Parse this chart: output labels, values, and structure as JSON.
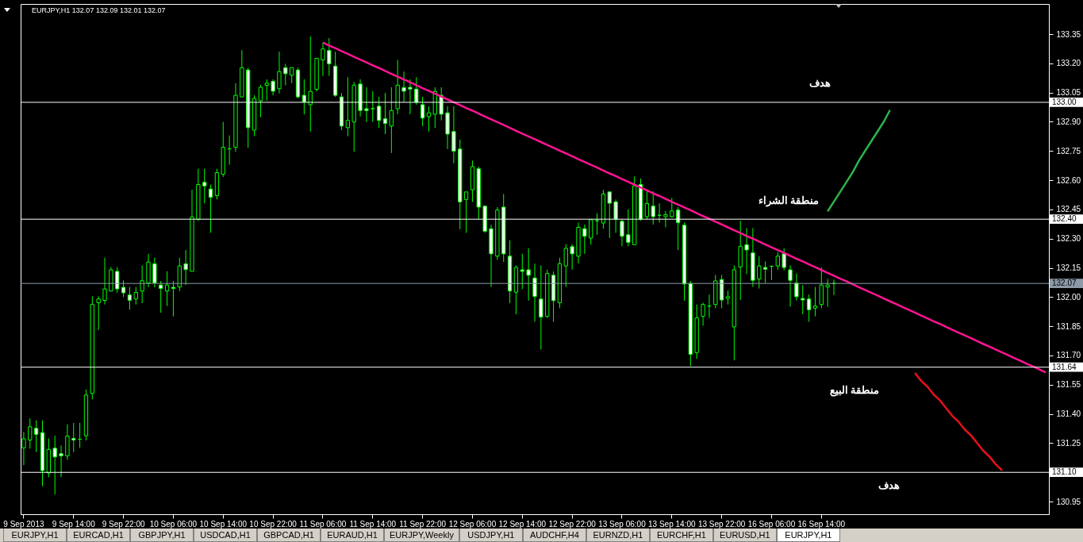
{
  "chart_data": {
    "type": "candlestick",
    "title": "EURJPY,H1  132.07 132.09 132.01 132.07",
    "categories": [
      "9 Sep 2013",
      null,
      null,
      null,
      null,
      null,
      null,
      null,
      "9 Sep 14:00",
      null,
      null,
      null,
      null,
      null,
      null,
      null,
      "9 Sep 22:00",
      null,
      null,
      null,
      null,
      null,
      null,
      null,
      "10 Sep 06:00",
      null,
      null,
      null,
      null,
      null,
      null,
      null,
      "10 Sep 14:00",
      null,
      null,
      null,
      null,
      null,
      null,
      null,
      "10 Sep 22:00",
      null,
      null,
      null,
      null,
      null,
      null,
      null,
      "11 Sep 06:00",
      null,
      null,
      null,
      null,
      null,
      null,
      null,
      "11 Sep 14:00",
      null,
      null,
      null,
      null,
      null,
      null,
      null,
      "11 Sep 22:00",
      null,
      null,
      null,
      null,
      null,
      null,
      null,
      "12 Sep 06:00",
      null,
      null,
      null,
      null,
      null,
      null,
      null,
      "12 Sep 14:00",
      null,
      null,
      null,
      null,
      null,
      null,
      null,
      "12 Sep 22:00",
      null,
      null,
      null,
      null,
      null,
      null,
      null,
      "13 Sep 06:00",
      null,
      null,
      null,
      null,
      null,
      null,
      null,
      "13 Sep 14:00",
      null,
      null,
      null,
      null,
      null,
      null,
      null,
      "13 Sep 22:00",
      null,
      null,
      null,
      null,
      null,
      null,
      null,
      "16 Sep 06:00",
      null,
      null,
      null,
      null,
      null,
      null,
      null,
      "16 Sep 14:00",
      null,
      null,
      null,
      null,
      null,
      null,
      null,
      null,
      null,
      null,
      null,
      null,
      null,
      null,
      null,
      null,
      null,
      null,
      null,
      null,
      null,
      null,
      null,
      null,
      null,
      null,
      null,
      null,
      null,
      null,
      null,
      null,
      null,
      null,
      null,
      null
    ],
    "ohlc": [
      [
        131.226,
        131.308,
        131.137,
        131.272
      ],
      [
        131.266,
        131.377,
        131.222,
        131.334
      ],
      [
        131.326,
        131.367,
        131.204,
        131.295
      ],
      [
        131.304,
        131.367,
        131.029,
        131.109
      ],
      [
        131.097,
        131.274,
        131.075,
        131.218
      ],
      [
        131.224,
        131.288,
        130.987,
        131.179
      ],
      [
        131.196,
        131.238,
        131.075,
        131.185
      ],
      [
        131.185,
        131.346,
        131.164,
        131.286
      ],
      [
        131.274,
        131.354,
        131.204,
        131.266
      ],
      [
        131.27,
        131.354,
        131.226,
        131.27
      ],
      [
        131.288,
        131.525,
        131.264,
        131.497
      ],
      [
        131.506,
        132.004,
        131.475,
        131.962
      ],
      [
        131.971,
        132.004,
        131.831,
        131.99
      ],
      [
        131.983,
        132.202,
        131.962,
        132.042
      ],
      [
        132.031,
        132.154,
        132.031,
        132.14
      ],
      [
        132.132,
        132.154,
        132.022,
        132.042
      ],
      [
        132.05,
        132.086,
        132.0,
        132.022
      ],
      [
        132.011,
        132.052,
        131.935,
        131.983
      ],
      [
        131.99,
        132.052,
        131.962,
        132.024
      ],
      [
        132.031,
        132.163,
        131.969,
        132.084
      ],
      [
        132.073,
        132.222,
        132.05,
        132.18
      ],
      [
        132.171,
        132.202,
        132.05,
        132.073
      ],
      [
        132.062,
        132.083,
        131.92,
        132.044
      ],
      [
        132.031,
        132.132,
        131.954,
        132.062
      ],
      [
        132.05,
        132.083,
        131.901,
        132.044
      ],
      [
        132.052,
        132.202,
        132.031,
        132.16
      ],
      [
        132.171,
        132.242,
        132.062,
        132.141
      ],
      [
        132.132,
        132.551,
        132.132,
        132.411
      ],
      [
        132.4,
        132.659,
        132.392,
        132.578
      ],
      [
        132.589,
        132.659,
        132.481,
        132.571
      ],
      [
        132.555,
        132.578,
        132.33,
        132.512
      ],
      [
        132.521,
        132.659,
        132.501,
        132.639
      ],
      [
        132.631,
        132.899,
        132.617,
        132.769
      ],
      [
        132.761,
        132.83,
        132.679,
        132.761
      ],
      [
        132.769,
        133.098,
        132.747,
        133.036
      ],
      [
        133.028,
        133.268,
        133.028,
        133.178
      ],
      [
        133.166,
        133.178,
        132.767,
        132.87
      ],
      [
        132.857,
        133.036,
        132.826,
        133.02
      ],
      [
        133.008,
        133.09,
        132.924,
        133.077
      ],
      [
        133.087,
        133.118,
        133.008,
        133.098
      ],
      [
        133.108,
        133.118,
        133.036,
        133.057
      ],
      [
        133.07,
        133.26,
        133.046,
        133.158
      ],
      [
        133.178,
        133.198,
        133.087,
        133.147
      ],
      [
        133.139,
        133.178,
        133.098,
        133.178
      ],
      [
        133.166,
        133.178,
        133.02,
        133.028
      ],
      [
        133.036,
        133.118,
        132.938,
        133.002
      ],
      [
        132.988,
        133.338,
        132.85,
        133.056
      ],
      [
        133.067,
        133.226,
        133.056,
        133.226
      ],
      [
        133.218,
        133.307,
        133.136,
        133.274
      ],
      [
        133.266,
        133.33,
        133.136,
        133.198
      ],
      [
        133.186,
        133.26,
        133.028,
        133.036
      ],
      [
        133.028,
        133.048,
        132.857,
        132.878
      ],
      [
        132.87,
        133.129,
        132.826,
        132.907
      ],
      [
        132.899,
        133.105,
        132.746,
        133.088
      ],
      [
        133.094,
        133.118,
        132.927,
        132.958
      ],
      [
        132.967,
        133.077,
        132.899,
        132.958
      ],
      [
        132.967,
        133.057,
        132.899,
        132.967
      ],
      [
        132.98,
        133.028,
        132.868,
        132.907
      ],
      [
        132.916,
        133.048,
        132.837,
        132.891
      ],
      [
        132.878,
        133.077,
        132.74,
        132.958
      ],
      [
        132.967,
        133.218,
        132.939,
        133.088
      ],
      [
        133.076,
        133.158,
        133.0,
        133.057
      ],
      [
        133.077,
        133.118,
        132.939,
        133.068
      ],
      [
        133.068,
        133.129,
        132.988,
        133.0
      ],
      [
        132.988,
        133.028,
        132.878,
        132.919
      ],
      [
        132.927,
        132.98,
        132.85,
        132.946
      ],
      [
        132.939,
        133.077,
        132.868,
        133.056
      ],
      [
        133.036,
        133.077,
        132.907,
        132.939
      ],
      [
        132.946,
        132.98,
        132.76,
        132.837
      ],
      [
        132.85,
        132.98,
        132.687,
        132.749
      ],
      [
        132.76,
        132.809,
        132.349,
        132.489
      ],
      [
        132.501,
        132.54,
        132.33,
        132.54
      ],
      [
        132.551,
        132.701,
        132.489,
        132.67
      ],
      [
        132.659,
        132.67,
        132.4,
        132.462
      ],
      [
        132.467,
        132.467,
        132.33,
        132.338
      ],
      [
        132.351,
        132.372,
        132.052,
        132.222
      ],
      [
        132.21,
        132.462,
        132.191,
        132.447
      ],
      [
        132.462,
        132.529,
        132.18,
        132.222
      ],
      [
        132.21,
        132.292,
        131.969,
        132.031
      ],
      [
        132.025,
        132.163,
        131.912,
        132.152
      ],
      [
        132.14,
        132.222,
        132.041,
        132.132
      ],
      [
        132.14,
        132.251,
        131.982,
        132.112
      ],
      [
        132.098,
        132.172,
        131.873,
        132.003
      ],
      [
        131.99,
        132.163,
        131.731,
        131.897
      ],
      [
        131.901,
        132.141,
        131.893,
        132.121
      ],
      [
        132.112,
        132.132,
        131.873,
        131.982
      ],
      [
        131.971,
        132.202,
        131.943,
        132.172
      ],
      [
        132.16,
        132.272,
        132.052,
        132.25
      ],
      [
        132.259,
        132.272,
        132.141,
        132.222
      ],
      [
        132.21,
        132.382,
        132.172,
        132.358
      ],
      [
        132.351,
        132.372,
        132.222,
        132.312
      ],
      [
        132.303,
        132.397,
        132.269,
        132.397
      ],
      [
        132.392,
        132.431,
        132.32,
        132.392
      ],
      [
        132.38,
        132.551,
        132.351,
        132.529
      ],
      [
        132.54,
        132.54,
        132.303,
        132.482
      ],
      [
        132.489,
        132.501,
        132.33,
        132.4
      ],
      [
        132.389,
        132.4,
        132.261,
        132.312
      ],
      [
        132.32,
        132.45,
        132.261,
        132.281
      ],
      [
        132.269,
        132.62,
        132.269,
        132.571
      ],
      [
        132.578,
        132.609,
        132.392,
        132.4
      ],
      [
        132.413,
        132.547,
        132.4,
        132.481
      ],
      [
        132.467,
        132.543,
        132.372,
        132.413
      ],
      [
        132.42,
        132.481,
        132.382,
        132.42
      ],
      [
        132.413,
        132.442,
        132.358,
        132.423
      ],
      [
        132.413,
        132.509,
        132.408,
        132.442
      ],
      [
        132.447,
        132.462,
        132.242,
        132.382
      ],
      [
        132.369,
        132.382,
        131.982,
        132.067
      ],
      [
        132.07,
        132.083,
        131.646,
        131.706
      ],
      [
        131.715,
        131.962,
        131.683,
        131.893
      ],
      [
        131.901,
        131.971,
        131.853,
        131.962
      ],
      [
        131.954,
        132.013,
        131.893,
        131.954
      ],
      [
        131.962,
        132.114,
        131.943,
        132.083
      ],
      [
        132.09,
        132.114,
        131.943,
        131.985
      ],
      [
        131.993,
        132.033,
        131.962,
        132.002
      ],
      [
        131.847,
        132.163,
        131.675,
        132.14
      ],
      [
        132.155,
        132.392,
        131.985,
        132.261
      ],
      [
        132.269,
        132.354,
        132.118,
        132.242
      ],
      [
        132.227,
        132.354,
        132.052,
        132.086
      ],
      [
        132.093,
        132.21,
        132.044,
        132.16
      ],
      [
        132.152,
        132.183,
        132.072,
        132.143
      ],
      [
        132.158,
        132.163,
        132.087,
        132.158
      ],
      [
        132.16,
        132.23,
        132.14,
        132.21
      ],
      [
        132.222,
        132.251,
        132.137,
        132.152
      ],
      [
        132.14,
        132.163,
        131.951,
        132.086
      ],
      [
        132.072,
        132.121,
        131.982,
        132.002
      ],
      [
        131.993,
        132.062,
        131.912,
        131.985
      ],
      [
        131.99,
        132.013,
        131.873,
        131.935
      ],
      [
        131.943,
        132.052,
        131.901,
        131.954
      ],
      [
        131.962,
        132.152,
        131.943,
        132.062
      ],
      [
        132.052,
        132.093,
        131.951,
        132.062
      ],
      [
        132.07,
        132.09,
        132.01,
        132.07
      ],
      null,
      null,
      null,
      null,
      null,
      null,
      null,
      null,
      null,
      null,
      null,
      null,
      null,
      null,
      null,
      null,
      null,
      null,
      null,
      null,
      null,
      null,
      null,
      null,
      null,
      null,
      null,
      null,
      null,
      null,
      null,
      null,
      null,
      null
    ],
    "series": [
      {
        "type": "line",
        "color": "#ff1493",
        "values": [
          null,
          null,
          null,
          null,
          null,
          null,
          null,
          null,
          null,
          null,
          null,
          null,
          null,
          null,
          null,
          null,
          null,
          null,
          null,
          null,
          null,
          null,
          null,
          null,
          null,
          null,
          null,
          null,
          null,
          null,
          null,
          null,
          null,
          null,
          null,
          null,
          null,
          null,
          null,
          null,
          null,
          null,
          null,
          null,
          null,
          null,
          null,
          null,
          133.307,
          133.292,
          133.278,
          133.263,
          133.249,
          133.234,
          133.219,
          133.205,
          133.19,
          133.176,
          133.161,
          133.146,
          133.132,
          133.117,
          133.103,
          133.088,
          133.073,
          133.059,
          133.044,
          133.03,
          133.015,
          133.0,
          132.986,
          132.971,
          132.957,
          132.942,
          132.927,
          132.913,
          132.898,
          132.884,
          132.869,
          132.854,
          132.839,
          132.825,
          132.811,
          132.796,
          132.781,
          132.767,
          132.752,
          132.738,
          132.723,
          132.708,
          132.694,
          132.679,
          132.665,
          132.65,
          132.635,
          132.621,
          132.606,
          132.592,
          132.577,
          132.562,
          132.548,
          132.533,
          132.519,
          132.504,
          132.489,
          132.475,
          132.46,
          132.446,
          132.431,
          132.416,
          132.402,
          132.387,
          132.373,
          132.358,
          132.343,
          132.329,
          132.314,
          132.3,
          132.285,
          132.27,
          132.256,
          132.241,
          132.227,
          132.212,
          132.197,
          132.183,
          132.168,
          132.154,
          132.139,
          132.124,
          132.11,
          132.095,
          132.081,
          132.066,
          132.051,
          132.037,
          132.022,
          132.008,
          131.993,
          131.978,
          131.964,
          131.949,
          131.935,
          131.92,
          131.905,
          131.891,
          131.876,
          131.862,
          131.847,
          131.832,
          131.818,
          131.803,
          131.789,
          131.774,
          131.759,
          131.745,
          131.73,
          131.716,
          131.701,
          131.686,
          131.672,
          131.657,
          131.643,
          131.628,
          131.613
        ]
      },
      {
        "type": "line",
        "color": "#2db34a",
        "values": [
          null,
          null,
          null,
          null,
          null,
          null,
          null,
          null,
          null,
          null,
          null,
          null,
          null,
          null,
          null,
          null,
          null,
          null,
          null,
          null,
          null,
          null,
          null,
          null,
          null,
          null,
          null,
          null,
          null,
          null,
          null,
          null,
          null,
          null,
          null,
          null,
          null,
          null,
          null,
          null,
          null,
          null,
          null,
          null,
          null,
          null,
          null,
          null,
          null,
          null,
          null,
          null,
          null,
          null,
          null,
          null,
          null,
          null,
          null,
          null,
          null,
          null,
          null,
          null,
          null,
          null,
          null,
          null,
          null,
          null,
          null,
          null,
          null,
          null,
          null,
          null,
          null,
          null,
          null,
          null,
          null,
          null,
          null,
          null,
          null,
          null,
          null,
          null,
          null,
          null,
          null,
          null,
          null,
          null,
          null,
          null,
          null,
          null,
          null,
          null,
          null,
          null,
          null,
          null,
          null,
          null,
          null,
          null,
          null,
          null,
          null,
          null,
          null,
          null,
          null,
          null,
          null,
          null,
          null,
          null,
          null,
          null,
          null,
          null,
          null,
          null,
          null,
          null,
          null,
          132.44,
          132.49,
          132.54,
          132.59,
          132.64,
          132.7,
          132.75,
          132.8,
          132.85,
          132.9,
          132.96,
          null,
          null,
          null,
          null,
          null,
          null,
          null,
          null,
          null,
          null,
          null,
          null,
          null,
          null,
          null,
          null,
          null,
          null,
          null,
          null,
          null,
          null,
          null,
          null,
          null
        ]
      },
      {
        "type": "line",
        "color": "#e8101a",
        "values": [
          null,
          null,
          null,
          null,
          null,
          null,
          null,
          null,
          null,
          null,
          null,
          null,
          null,
          null,
          null,
          null,
          null,
          null,
          null,
          null,
          null,
          null,
          null,
          null,
          null,
          null,
          null,
          null,
          null,
          null,
          null,
          null,
          null,
          null,
          null,
          null,
          null,
          null,
          null,
          null,
          null,
          null,
          null,
          null,
          null,
          null,
          null,
          null,
          null,
          null,
          null,
          null,
          null,
          null,
          null,
          null,
          null,
          null,
          null,
          null,
          null,
          null,
          null,
          null,
          null,
          null,
          null,
          null,
          null,
          null,
          null,
          null,
          null,
          null,
          null,
          null,
          null,
          null,
          null,
          null,
          null,
          null,
          null,
          null,
          null,
          null,
          null,
          null,
          null,
          null,
          null,
          null,
          null,
          null,
          null,
          null,
          null,
          null,
          null,
          null,
          null,
          null,
          null,
          null,
          null,
          null,
          null,
          null,
          null,
          null,
          null,
          null,
          null,
          null,
          null,
          null,
          null,
          null,
          null,
          null,
          null,
          null,
          null,
          null,
          null,
          null,
          null,
          null,
          null,
          null,
          null,
          null,
          null,
          null,
          null,
          null,
          null,
          null,
          null,
          null,
          null,
          null,
          null,
          131.61,
          131.57,
          131.54,
          131.5,
          131.47,
          131.43,
          131.39,
          131.36,
          131.32,
          131.29,
          131.25,
          131.21,
          131.18,
          131.14,
          131.11,
          null,
          null,
          null,
          null,
          null,
          null,
          null
        ]
      }
    ],
    "ylim": [
      130.885,
      133.505
    ],
    "yticks": [
      130.95,
      131.25,
      {
        "value": 131.4,
        "label": "131.40"
      },
      131.55,
      {
        "value": 131.7,
        "label": "131.70"
      },
      131.85,
      {
        "value": 132.0,
        "label": "132.00"
      },
      132.15,
      {
        "value": 132.3,
        "label": "132.30"
      },
      132.45,
      {
        "value": 132.6,
        "label": "132.60"
      },
      132.75,
      {
        "value": 132.9,
        "label": "132.90"
      },
      133.05,
      {
        "value": 133.2,
        "label": "133.20"
      },
      133.35
    ],
    "ref_lines": [
      {
        "axis": "y",
        "value": 133.0,
        "label": "133.00",
        "color": "#ffffff"
      },
      {
        "axis": "y",
        "value": 132.4,
        "label": "132.40",
        "color": "#ffffff"
      },
      {
        "axis": "y",
        "value": 132.07,
        "label": "132.07",
        "color": "#8c9aa8"
      },
      {
        "axis": "y",
        "value": 131.64,
        "label": "131.64",
        "color": "#ffffff"
      },
      {
        "axis": "y",
        "value": 131.1,
        "label": "131.10",
        "color": "#ffffff"
      }
    ],
    "annotations": [
      "هدف",
      "منطقة الشراء",
      "منطقة البيع",
      "هدف",
      "EURJPY,H1",
      "EURCAD,H1",
      "GBPJPY,H1",
      "USDCAD,H1",
      "GBPCAD,H1",
      "EURAUD,H1",
      "EURJPY,Weekly",
      "USDJPY,H1",
      "AUDCHF,H4",
      "EURNZD,H1",
      "EURCHF,H1",
      "EURUSD,H1",
      "EURJPY,H1"
    ],
    "grid": false
  }
}
